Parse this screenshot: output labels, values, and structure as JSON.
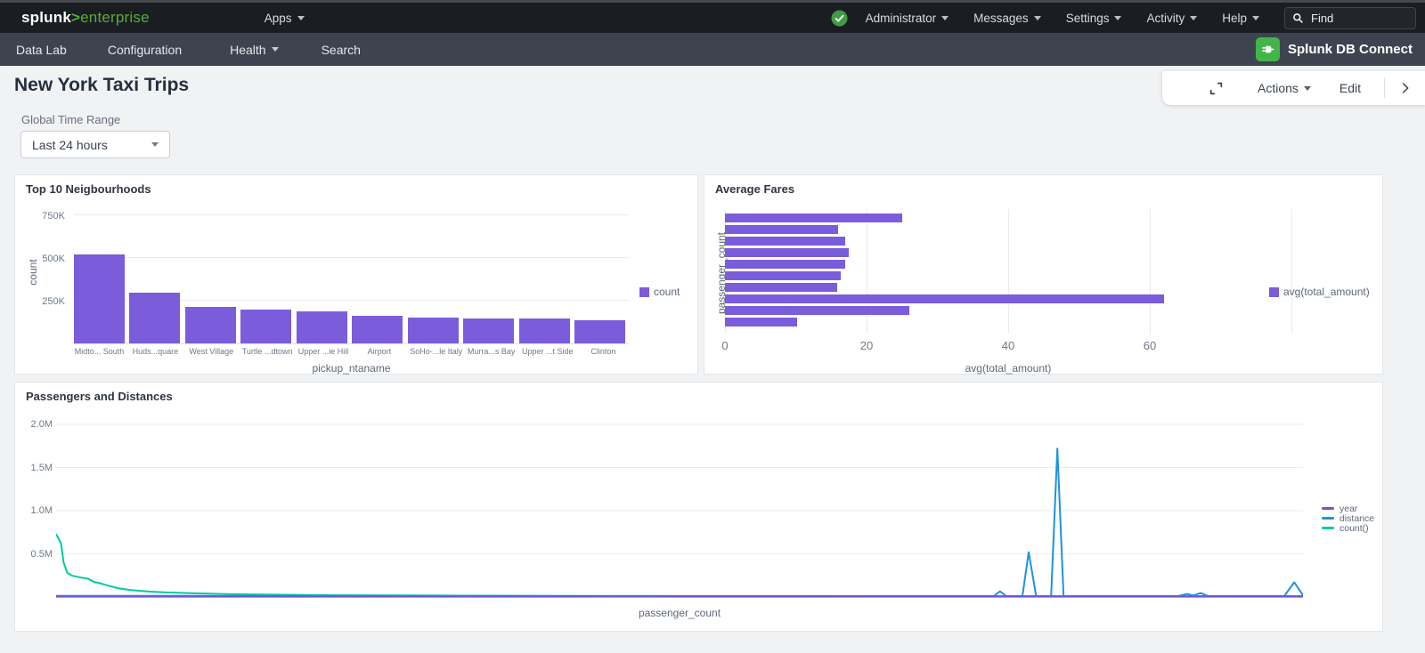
{
  "topbar": {
    "logo": {
      "splunk": "splunk",
      "gt": ">",
      "product": "enterprise"
    },
    "apps_label": "Apps",
    "menus": [
      {
        "label": "Administrator"
      },
      {
        "label": "Messages"
      },
      {
        "label": "Settings"
      },
      {
        "label": "Activity"
      },
      {
        "label": "Help"
      }
    ],
    "find_placeholder": "Find",
    "status_icon": "green-check-circle",
    "status_color": "#3f9c44"
  },
  "appbar": {
    "items": [
      {
        "label": "Data Lab",
        "caret": false
      },
      {
        "label": "Configuration",
        "caret": false
      },
      {
        "label": "Health",
        "caret": true
      },
      {
        "label": "Search",
        "caret": false
      }
    ],
    "brand": "Splunk DB Connect",
    "brand_icon": "green-plug-icon",
    "brand_icon_color": "#42b549"
  },
  "page": {
    "title": "New York Taxi Trips",
    "toolbar": {
      "expand_icon": "fullscreen-corners-icon",
      "actions_label": "Actions",
      "edit_label": "Edit",
      "chevron_icon": "chevron-right-icon"
    }
  },
  "time_range": {
    "label": "Global Time Range",
    "value": "Last 24 hours"
  },
  "accent_colors": {
    "bar_purple": "#7b5cdb",
    "line_blue": "#1e93dd",
    "line_teal": "#00c9a3",
    "line_purple": "#6d55d4"
  },
  "chart_data": [
    {
      "type": "bar",
      "title": "Top 10 Neigbourhoods",
      "categories": [
        "Midto... South",
        "Huds...quare",
        "West Village",
        "Turtle ...dtown",
        "Upper ...ie Hill",
        "Airport",
        "SoHo-...le Italy",
        "Murra...s Bay",
        "Upper ...t Side",
        "Clinton"
      ],
      "values": [
        520000,
        295000,
        215000,
        200000,
        190000,
        160000,
        152000,
        146000,
        145000,
        138000
      ],
      "xlabel": "pickup_ntaname",
      "ylabel": "count",
      "yticks": [
        {
          "label": "250K",
          "value": 250000
        },
        {
          "label": "500K",
          "value": 500000
        },
        {
          "label": "750K",
          "value": 750000
        }
      ],
      "ymax": 781250,
      "grid": "horizontal",
      "bar_color": "#7b5cdb",
      "legend": [
        {
          "label": "count",
          "color": "#7b5cdb"
        }
      ],
      "legend_position": "right"
    },
    {
      "type": "horizontal-bar",
      "title": "Average Fares",
      "values_top_to_bottom": [
        25,
        16,
        17,
        17.5,
        17,
        16.3,
        15.9,
        62,
        26,
        10.2
      ],
      "xlabel": "avg(total_amount)",
      "ylabel": "passenger_count",
      "xticks": [
        {
          "label": "0",
          "value": 0
        },
        {
          "label": "20",
          "value": 20
        },
        {
          "label": "40",
          "value": 40
        },
        {
          "label": "60",
          "value": 60
        },
        {
          "label": "",
          "value": 80
        }
      ],
      "xmax": 80,
      "grid": "vertical",
      "bar_color": "#7b5cdb",
      "legend": [
        {
          "label": "avg(total_amount)",
          "color": "#7b5cdb"
        }
      ],
      "legend_position": "right"
    },
    {
      "type": "line",
      "title": "Passengers and Distances",
      "xlabel": "passenger_count",
      "yticks": [
        {
          "label": "0.5M",
          "value": 0.5
        },
        {
          "label": "1.0M",
          "value": 1.0
        },
        {
          "label": "1.5M",
          "value": 1.5
        },
        {
          "label": "2.0M",
          "value": 2.0
        }
      ],
      "ymax": 2.07,
      "value_unit": "M",
      "grid": "horizontal",
      "legend_position": "right",
      "series": [
        {
          "name": "year",
          "color": "#6d55d4",
          "points": [
            [
              0,
              0.004
            ],
            [
              1,
              0.004
            ]
          ]
        },
        {
          "name": "distance",
          "color": "#1e93dd",
          "points": [
            [
              0,
              0.012
            ],
            [
              0.1,
              0.012
            ],
            [
              0.3,
              0.011
            ],
            [
              0.5,
              0.01
            ],
            [
              0.72,
              0.01
            ],
            [
              0.752,
              0.01
            ],
            [
              0.757,
              0.065
            ],
            [
              0.762,
              0.01
            ],
            [
              0.775,
              0.01
            ],
            [
              0.78,
              0.52
            ],
            [
              0.786,
              0.01
            ],
            [
              0.798,
              0.01
            ],
            [
              0.803,
              1.72
            ],
            [
              0.808,
              0.01
            ],
            [
              0.9,
              0.01
            ],
            [
              0.907,
              0.035
            ],
            [
              0.912,
              0.018
            ],
            [
              0.918,
              0.045
            ],
            [
              0.924,
              0.01
            ],
            [
              0.985,
              0.01
            ],
            [
              0.993,
              0.17
            ],
            [
              1,
              0.02
            ]
          ]
        },
        {
          "name": "count()",
          "color": "#00c9a3",
          "points": [
            [
              0,
              0.73
            ],
            [
              0.004,
              0.62
            ],
            [
              0.006,
              0.4
            ],
            [
              0.009,
              0.28
            ],
            [
              0.013,
              0.245
            ],
            [
              0.02,
              0.225
            ],
            [
              0.026,
              0.21
            ],
            [
              0.03,
              0.175
            ],
            [
              0.035,
              0.16
            ],
            [
              0.042,
              0.13
            ],
            [
              0.05,
              0.1
            ],
            [
              0.06,
              0.08
            ],
            [
              0.075,
              0.062
            ],
            [
              0.09,
              0.052
            ],
            [
              0.11,
              0.042
            ],
            [
              0.14,
              0.032
            ],
            [
              0.18,
              0.026
            ],
            [
              0.23,
              0.02
            ],
            [
              0.3,
              0.016
            ],
            [
              0.4,
              0.013
            ],
            [
              0.55,
              0.011
            ],
            [
              0.75,
              0.01
            ],
            [
              1,
              0.01
            ]
          ]
        }
      ]
    }
  ]
}
